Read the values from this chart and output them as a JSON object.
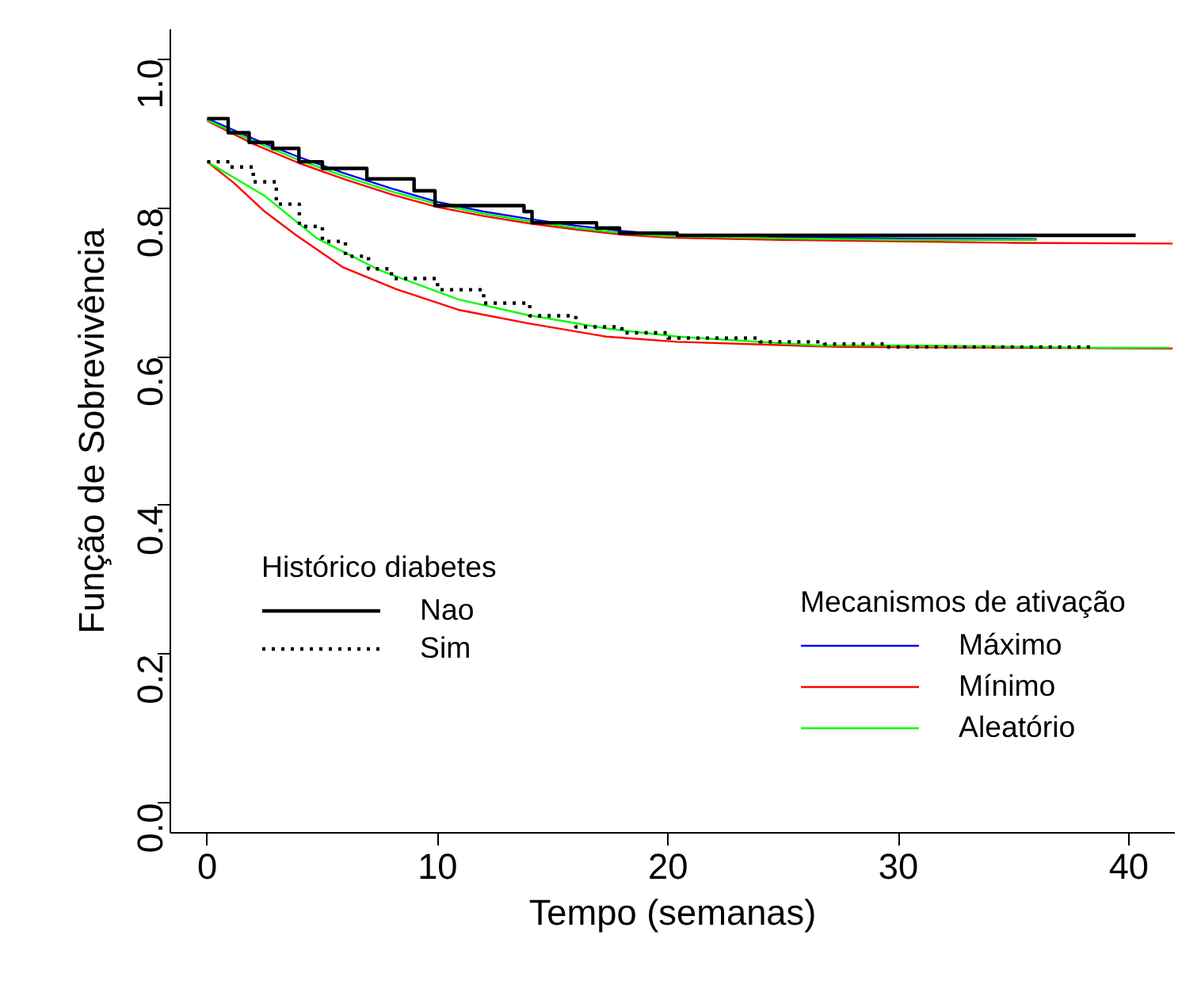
{
  "chart_data": {
    "type": "line",
    "xlabel": "Tempo (semanas)",
    "ylabel": "Função de Sobrevivência",
    "xlim": [
      -1.6,
      42
    ],
    "ylim": [
      -0.04,
      1.04
    ],
    "xticks": [
      0,
      10,
      20,
      30,
      40
    ],
    "yticks": [
      {
        "value": 0,
        "label": "0.0"
      },
      0.2,
      0.4,
      0.6,
      0.8,
      {
        "value": 1,
        "label": "1.0"
      }
    ],
    "grid": false,
    "legend": "bottom",
    "legend_title": "Mecanismos de ativação",
    "annotations": [
      "Histórico diabetes"
    ],
    "series": [
      {
        "name": "Máximo",
        "color": "#0000ff",
        "line_style": "solid",
        "x": [
          0,
          2,
          4,
          6,
          8,
          10,
          12,
          14,
          16,
          18,
          20,
          25,
          30,
          36
        ],
        "values": [
          0.92,
          0.893,
          0.868,
          0.846,
          0.826,
          0.808,
          0.795,
          0.785,
          0.776,
          0.769,
          0.764,
          0.76,
          0.759,
          0.758
        ]
      },
      {
        "name": "Mínimo",
        "color": "#ff0000",
        "line_style": "solid",
        "x": [
          0,
          2,
          4,
          6,
          8,
          10,
          12,
          14,
          16,
          18,
          20,
          25,
          30,
          35,
          41.9
        ],
        "values": [
          0.917,
          0.886,
          0.86,
          0.838,
          0.818,
          0.801,
          0.789,
          0.779,
          0.771,
          0.764,
          0.76,
          0.757,
          0.755,
          0.753,
          0.752
        ]
      },
      {
        "name": "Aleatório",
        "color": "#00ff00",
        "line_style": "solid",
        "x": [
          0,
          2,
          4,
          6,
          8,
          10,
          12,
          14,
          16,
          18,
          20,
          25,
          30,
          36
        ],
        "values": [
          0.918,
          0.89,
          0.864,
          0.842,
          0.822,
          0.805,
          0.792,
          0.782,
          0.773,
          0.766,
          0.762,
          0.759,
          0.757,
          0.757
        ]
      },
      {
        "color": "#ff0000",
        "line_style": "solid",
        "x": [
          0,
          1.14,
          2.5,
          3.87,
          5.9,
          8.18,
          10.9,
          13.9,
          17.3,
          20.4,
          27.5,
          41.9
        ],
        "values": [
          0.862,
          0.834,
          0.795,
          0.763,
          0.72,
          0.691,
          0.663,
          0.645,
          0.627,
          0.62,
          0.613,
          0.611
        ]
      },
      {
        "color": "#00ff00",
        "line_style": "solid",
        "x": [
          0,
          2.5,
          4.77,
          7.5,
          10.9,
          13.9,
          17.3,
          20.4,
          22.9,
          26.6,
          30.7,
          38.6,
          41.8
        ],
        "values": [
          0.862,
          0.816,
          0.759,
          0.716,
          0.677,
          0.656,
          0.638,
          0.627,
          0.622,
          0.615,
          0.615,
          0.612,
          0.612
        ]
      },
      {
        "name": "Nao",
        "type": "step",
        "color": "#000000",
        "line_style": "solid",
        "x": [
          0,
          0.91,
          1.82,
          2.84,
          3.98,
          5.0,
          6.93,
          8.98,
          9.89,
          13.75,
          14.1,
          16.9,
          17.9,
          20.4,
          40.3
        ],
        "values": [
          0.92,
          0.901,
          0.888,
          0.88,
          0.862,
          0.853,
          0.839,
          0.823,
          0.803,
          0.795,
          0.78,
          0.773,
          0.766,
          0.763,
          0.763
        ]
      },
      {
        "name": "Sim",
        "type": "step",
        "color": "#000000",
        "line_style": "dotted",
        "x": [
          0,
          1,
          2,
          3,
          4,
          5,
          6,
          7,
          8,
          10,
          12,
          14,
          16,
          18,
          20,
          24,
          26.8,
          29.5,
          38.5
        ],
        "values": [
          0.862,
          0.855,
          0.835,
          0.805,
          0.775,
          0.755,
          0.735,
          0.718,
          0.705,
          0.69,
          0.672,
          0.655,
          0.64,
          0.632,
          0.625,
          0.62,
          0.617,
          0.613,
          0.613
        ]
      }
    ]
  }
}
